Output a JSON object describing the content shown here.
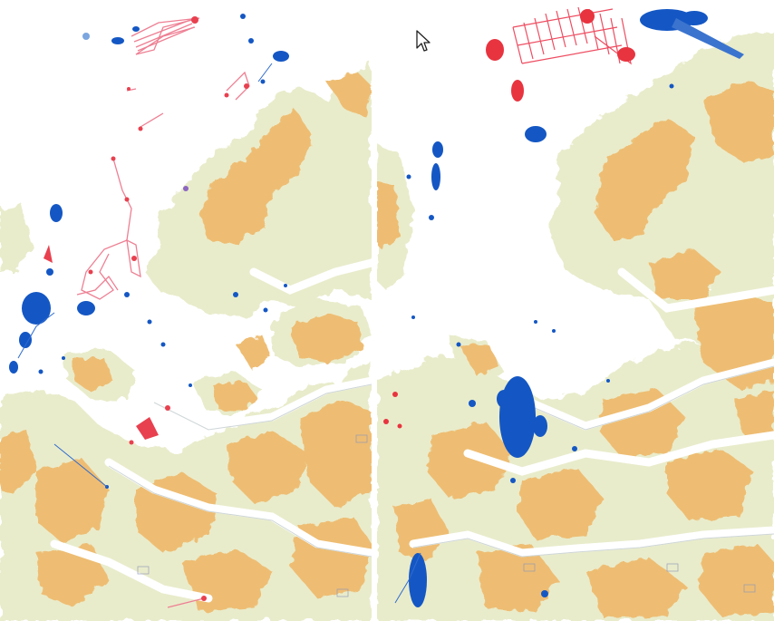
{
  "colors": {
    "sea": "#ffffff",
    "lowland": "#e9eccb",
    "highland": "#eebd73",
    "highland_dark": "#e6a95e",
    "obs_blue": "#1457c4",
    "track_red": "#e8404f",
    "track_pink": "#ee7f93"
  },
  "panels": [
    {
      "id": "left",
      "labels": [
        "",
        "",
        ""
      ]
    },
    {
      "id": "right",
      "labels": [
        "",
        "",
        ""
      ]
    }
  ],
  "icons": [
    "mouse-pointer-icon"
  ]
}
